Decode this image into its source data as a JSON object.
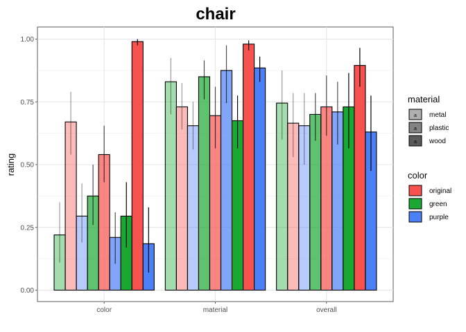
{
  "chart_data": {
    "type": "bar",
    "title": "chair",
    "xlabel": "",
    "ylabel": "rating",
    "ylim": [
      0,
      1.05
    ],
    "yticks": [
      "0.00",
      "0.25",
      "0.50",
      "0.75",
      "1.00"
    ],
    "ytick_values": [
      0,
      0.25,
      0.5,
      0.75,
      1.0
    ],
    "categories": [
      "color",
      "material",
      "overall"
    ],
    "grid": true,
    "colors": {
      "green": "#1aa832",
      "original": "#f8524f",
      "purple": "#4b80f7"
    },
    "material_alpha": {
      "metal": 0.4,
      "plastic": 0.7,
      "wood": 1.0
    },
    "series": [
      {
        "color": "green",
        "material": "metal",
        "values": [
          0.22,
          0.83,
          0.745
        ],
        "err_low": [
          0.11,
          0.7,
          0.6
        ],
        "err_high": [
          0.35,
          0.925,
          0.875
        ]
      },
      {
        "color": "original",
        "material": "metal",
        "values": [
          0.67,
          0.73,
          0.665
        ],
        "err_low": [
          0.54,
          0.64,
          0.53
        ],
        "err_high": [
          0.79,
          0.825,
          0.785
        ]
      },
      {
        "color": "purple",
        "material": "metal",
        "values": [
          0.295,
          0.655,
          0.655
        ],
        "err_low": [
          0.19,
          0.56,
          0.5
        ],
        "err_high": [
          0.425,
          0.75,
          0.785
        ]
      },
      {
        "color": "green",
        "material": "plastic",
        "values": [
          0.375,
          0.85,
          0.7
        ],
        "err_low": [
          0.26,
          0.76,
          0.595
        ],
        "err_high": [
          0.5,
          0.915,
          0.785
        ]
      },
      {
        "color": "original",
        "material": "plastic",
        "values": [
          0.54,
          0.695,
          0.73
        ],
        "err_low": [
          0.43,
          0.565,
          0.615
        ],
        "err_high": [
          0.655,
          0.81,
          0.855
        ]
      },
      {
        "color": "purple",
        "material": "plastic",
        "values": [
          0.21,
          0.875,
          0.71
        ],
        "err_low": [
          0.105,
          0.745,
          0.58
        ],
        "err_high": [
          0.31,
          0.975,
          0.83
        ]
      },
      {
        "color": "green",
        "material": "wood",
        "values": [
          0.295,
          0.675,
          0.73
        ],
        "err_low": [
          0.17,
          0.565,
          0.565
        ],
        "err_high": [
          0.43,
          0.775,
          0.865
        ]
      },
      {
        "color": "original",
        "material": "wood",
        "values": [
          0.99,
          0.98,
          0.895
        ],
        "err_low": [
          0.975,
          0.955,
          0.81
        ],
        "err_high": [
          1.0,
          0.995,
          0.965
        ]
      },
      {
        "color": "purple",
        "material": "wood",
        "values": [
          0.185,
          0.885,
          0.63
        ],
        "err_low": [
          0.07,
          0.83,
          0.475
        ],
        "err_high": [
          0.33,
          0.93,
          0.775
        ]
      }
    ],
    "legends": [
      {
        "title": "material",
        "items": [
          "metal",
          "plastic",
          "wood"
        ],
        "key_letter": "a"
      },
      {
        "title": "color",
        "items": [
          "original",
          "green",
          "purple"
        ]
      }
    ],
    "legend_position": "right"
  }
}
